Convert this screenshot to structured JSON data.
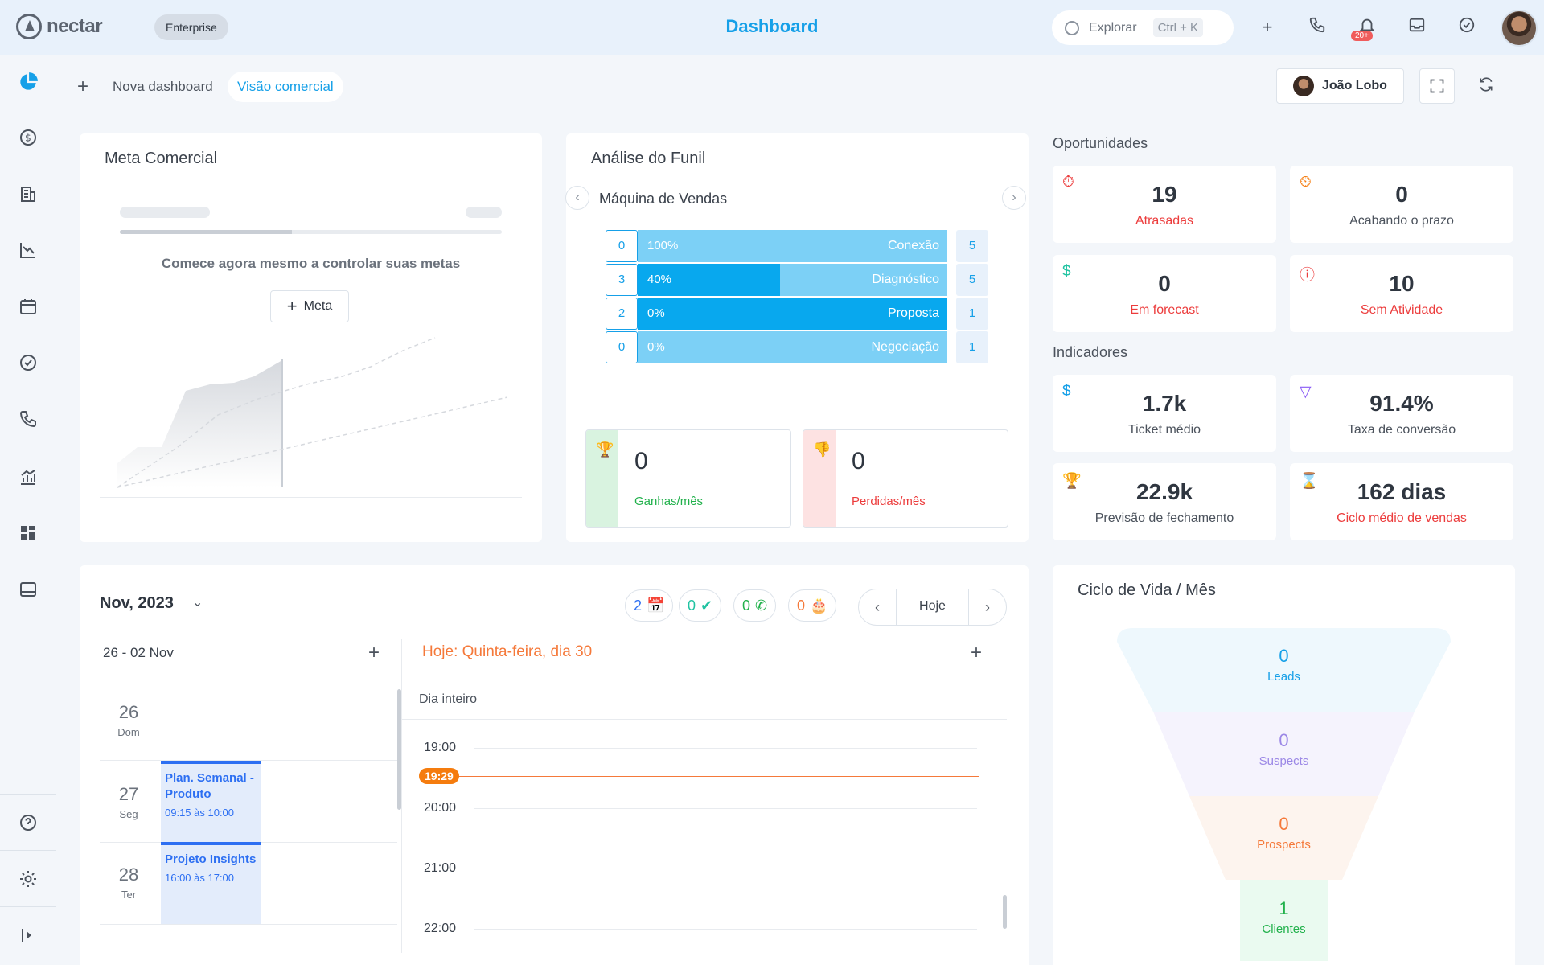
{
  "app": {
    "logo_text": "nectar",
    "plan": "Enterprise",
    "title": "Dashboard",
    "explore_label": "Explorar",
    "explore_shortcut": "Ctrl + K",
    "notification_count": "20+"
  },
  "subheader": {
    "new_dashboard": "Nova dashboard",
    "active_tab": "Visão comercial",
    "user": "João Lobo"
  },
  "meta": {
    "title": "Meta Comercial",
    "message": "Comece agora mesmo a controlar suas metas",
    "button": "Meta"
  },
  "funil": {
    "title": "Análise do Funil",
    "pipeline": "Máquina de Vendas",
    "stages": [
      {
        "count": "0",
        "percent": "100%",
        "name": "Conexão",
        "total": "5",
        "fill": 0
      },
      {
        "count": "3",
        "percent": "40%",
        "name": "Diagnóstico",
        "total": "5",
        "fill": 0.46
      },
      {
        "count": "2",
        "percent": "0%",
        "name": "Proposta",
        "total": "1",
        "fill": 1
      },
      {
        "count": "0",
        "percent": "0%",
        "name": "Negociação",
        "total": "1",
        "fill": 0
      }
    ],
    "won": {
      "value": "0",
      "label": "Ganhas/mês"
    },
    "lost": {
      "value": "0",
      "label": "Perdidas/mês"
    }
  },
  "oportunidades": {
    "title": "Oportunidades",
    "items": [
      {
        "value": "19",
        "label": "Atrasadas"
      },
      {
        "value": "0",
        "label": "Acabando o prazo"
      },
      {
        "value": "0",
        "label": "Em forecast"
      },
      {
        "value": "10",
        "label": "Sem Atividade"
      }
    ]
  },
  "indicadores": {
    "title": "Indicadores",
    "items": [
      {
        "value": "1.7k",
        "label": "Ticket médio"
      },
      {
        "value": "91.4%",
        "label": "Taxa de conversão"
      },
      {
        "value": "22.9k",
        "label": "Previsão de fechamento"
      },
      {
        "value": "162 dias",
        "label": "Ciclo médio de vendas"
      }
    ]
  },
  "calendar": {
    "month": "Nov, 2023",
    "counters": {
      "events": "2",
      "tasks": "0",
      "calls": "0",
      "birthdays": "0"
    },
    "today_button": "Hoje",
    "week_range": "26 - 02 Nov",
    "days": [
      {
        "num": "26",
        "name": "Dom"
      },
      {
        "num": "27",
        "name": "Seg"
      },
      {
        "num": "28",
        "name": "Ter"
      }
    ],
    "events": [
      {
        "title": "Plan. Semanal - Produto",
        "time": "09:15 às 10:00"
      },
      {
        "title": "Projeto Insights",
        "time": "16:00 às 17:00"
      }
    ],
    "today_title": "Hoje: Quinta-feira, dia 30",
    "all_day": "Dia inteiro",
    "hours": [
      "19:00",
      "20:00",
      "21:00",
      "22:00"
    ],
    "now": "19:29"
  },
  "ciclo": {
    "title": "Ciclo de Vida / Mês",
    "levels": [
      {
        "value": "0",
        "label": "Leads"
      },
      {
        "value": "0",
        "label": "Suspects"
      },
      {
        "value": "0",
        "label": "Prospects"
      },
      {
        "value": "1",
        "label": "Clientes"
      }
    ]
  },
  "colors": {
    "accent": "#16a0e8",
    "funnel_light": "#7cd0f6",
    "funnel_dark": "#08a8ee",
    "danger": "#ec3c3c",
    "success": "#22b14c",
    "orange": "#f5793a"
  }
}
